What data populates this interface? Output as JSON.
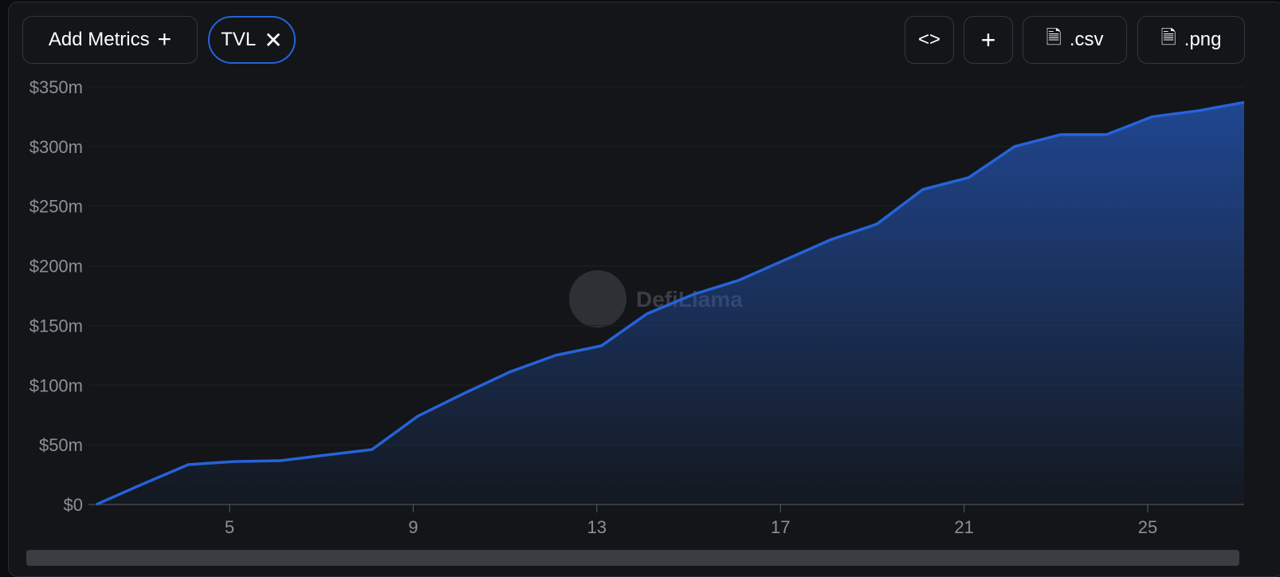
{
  "toolbar": {
    "add_metrics": "Add Metrics",
    "metric_chip": "TVL",
    "csv": ".csv",
    "png": ".png"
  },
  "watermark": "DefiLlama",
  "chart_data": {
    "type": "area",
    "x": [
      2.1,
      3.1,
      4.1,
      5.1,
      6.1,
      7.1,
      8.1,
      9.1,
      10.1,
      11.1,
      12.1,
      13.1,
      14.1,
      15.1,
      16.1,
      17.1,
      18.1,
      19.1,
      20.1,
      21.1,
      22.1,
      23.1,
      24.1,
      25.1,
      26.1,
      27.1
    ],
    "series": [
      {
        "name": "TVL",
        "color": "#2563d9",
        "values": [
          0,
          17,
          33.4,
          36,
          36.7,
          41.4,
          46,
          74,
          93,
          111,
          125,
          133,
          160,
          176,
          188,
          205,
          222,
          235,
          264,
          274,
          300,
          310,
          310,
          325,
          330,
          337
        ]
      }
    ],
    "xlim": [
      2.1,
      27.1
    ],
    "xticks": [
      5,
      9,
      13,
      17,
      21,
      25
    ],
    "ylim": [
      0,
      350
    ],
    "yticks": [
      {
        "value": 0,
        "label": "$0"
      },
      {
        "value": 50,
        "label": "$50m"
      },
      {
        "value": 100,
        "label": "$100m"
      },
      {
        "value": 150,
        "label": "$150m"
      },
      {
        "value": 200,
        "label": "$200m"
      },
      {
        "value": 250,
        "label": "$250m"
      },
      {
        "value": 300,
        "label": "$300m"
      },
      {
        "value": 350,
        "label": "$350m"
      }
    ],
    "grid": true
  }
}
